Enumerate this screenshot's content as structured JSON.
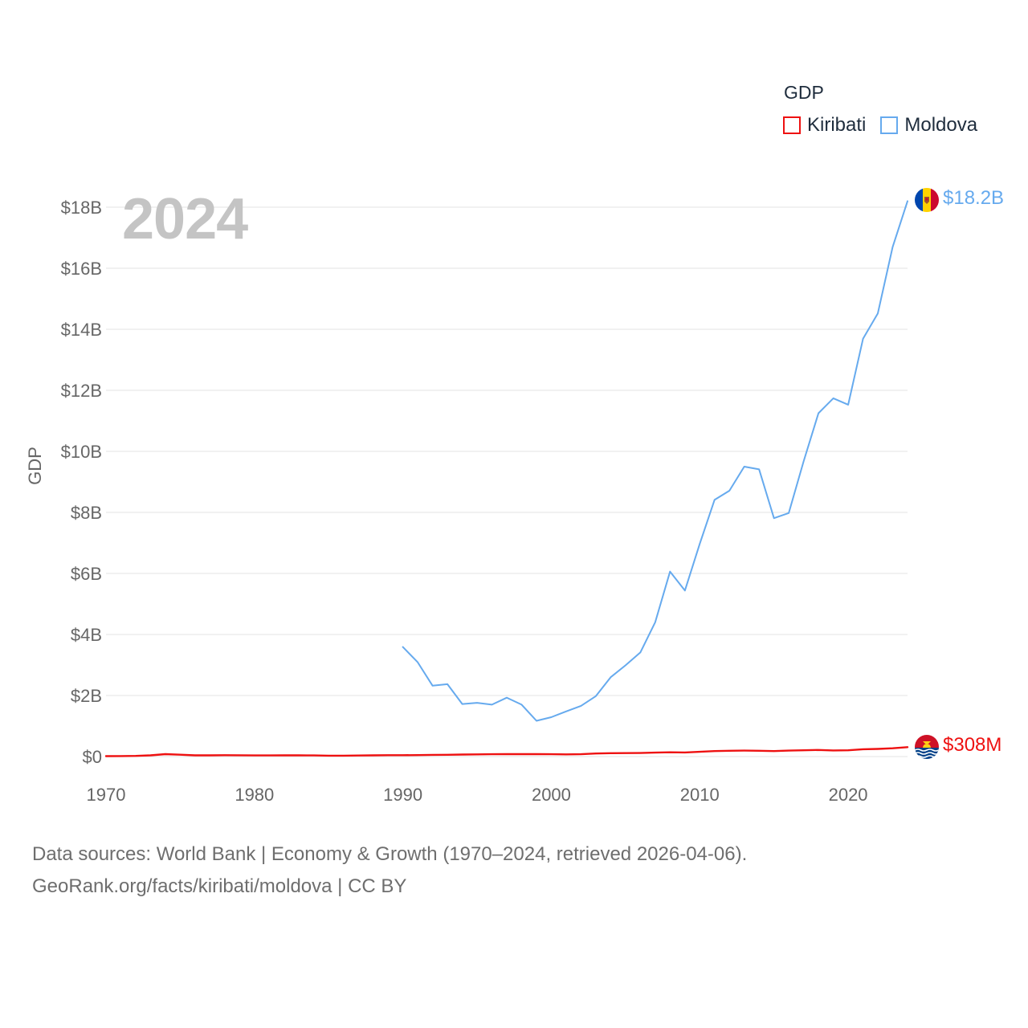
{
  "legend": {
    "title": "GDP",
    "items": [
      {
        "label": "Kiribati",
        "color": "#ee1111"
      },
      {
        "label": "Moldova",
        "color": "#66aaee"
      }
    ]
  },
  "year_label": "2024",
  "source": {
    "line1": "Data sources: World Bank | Economy & Growth (1970–2024, retrieved 2026-04-06).",
    "line2": "GeoRank.org/facts/kiribati/moldova | CC BY"
  },
  "end_labels": {
    "moldova": "$18.2B",
    "kiribati": "$308M"
  },
  "flags": {
    "moldova": "moldova-flag-icon",
    "kiribati": "kiribati-flag-icon"
  },
  "chart_data": {
    "type": "line",
    "title": "",
    "xlabel": "",
    "ylabel": "GDP",
    "xlim": [
      1970,
      2024
    ],
    "ylim": [
      0,
      18000000000
    ],
    "x_ticks": [
      1970,
      1980,
      1990,
      2000,
      2010,
      2020
    ],
    "x_tick_labels": [
      "1970",
      "1980",
      "1990",
      "2000",
      "2010",
      "2020"
    ],
    "y_ticks": [
      0,
      2000000000,
      4000000000,
      6000000000,
      8000000000,
      10000000000,
      12000000000,
      14000000000,
      16000000000,
      18000000000
    ],
    "y_tick_labels": [
      "$0",
      "$2B",
      "$4B",
      "$6B",
      "$8B",
      "$10B",
      "$12B",
      "$14B",
      "$16B",
      "$18B"
    ],
    "grid": true,
    "series": [
      {
        "name": "Kiribati",
        "color": "#ee1111",
        "x": [
          1970,
          1971,
          1972,
          1973,
          1974,
          1975,
          1976,
          1977,
          1978,
          1979,
          1980,
          1981,
          1982,
          1983,
          1984,
          1985,
          1986,
          1987,
          1988,
          1989,
          1990,
          1991,
          1992,
          1993,
          1994,
          1995,
          1996,
          1997,
          1998,
          1999,
          2000,
          2001,
          2002,
          2003,
          2004,
          2005,
          2006,
          2007,
          2008,
          2009,
          2010,
          2011,
          2012,
          2013,
          2014,
          2015,
          2016,
          2017,
          2018,
          2019,
          2020,
          2021,
          2022,
          2023,
          2024
        ],
        "values": [
          14000000,
          16000000,
          20000000,
          40000000,
          80000000,
          60000000,
          40000000,
          40000000,
          45000000,
          42000000,
          38000000,
          38000000,
          40000000,
          40000000,
          38000000,
          30000000,
          28000000,
          35000000,
          40000000,
          45000000,
          45000000,
          47000000,
          55000000,
          58000000,
          65000000,
          70000000,
          75000000,
          80000000,
          80000000,
          78000000,
          75000000,
          70000000,
          75000000,
          100000000,
          110000000,
          112000000,
          115000000,
          130000000,
          140000000,
          135000000,
          155000000,
          180000000,
          190000000,
          195000000,
          190000000,
          180000000,
          195000000,
          205000000,
          215000000,
          200000000,
          205000000,
          240000000,
          250000000,
          270000000,
          308000000
        ]
      },
      {
        "name": "Moldova",
        "color": "#66aaee",
        "x": [
          1990,
          1991,
          1992,
          1993,
          1994,
          1995,
          1996,
          1997,
          1998,
          1999,
          2000,
          2001,
          2002,
          2003,
          2004,
          2005,
          2006,
          2007,
          2008,
          2009,
          2010,
          2011,
          2012,
          2013,
          2014,
          2015,
          2016,
          2017,
          2018,
          2019,
          2020,
          2021,
          2022,
          2023,
          2024
        ],
        "values": [
          3590000000,
          3090000000,
          2320000000,
          2370000000,
          1720000000,
          1760000000,
          1700000000,
          1930000000,
          1700000000,
          1170000000,
          1290000000,
          1480000000,
          1660000000,
          1980000000,
          2600000000,
          2990000000,
          3410000000,
          4400000000,
          6060000000,
          5440000000,
          6970000000,
          8410000000,
          8710000000,
          9500000000,
          9410000000,
          7810000000,
          7980000000,
          9670000000,
          11250000000,
          11740000000,
          11530000000,
          13690000000,
          14520000000,
          16700000000,
          18200000000
        ]
      }
    ]
  }
}
